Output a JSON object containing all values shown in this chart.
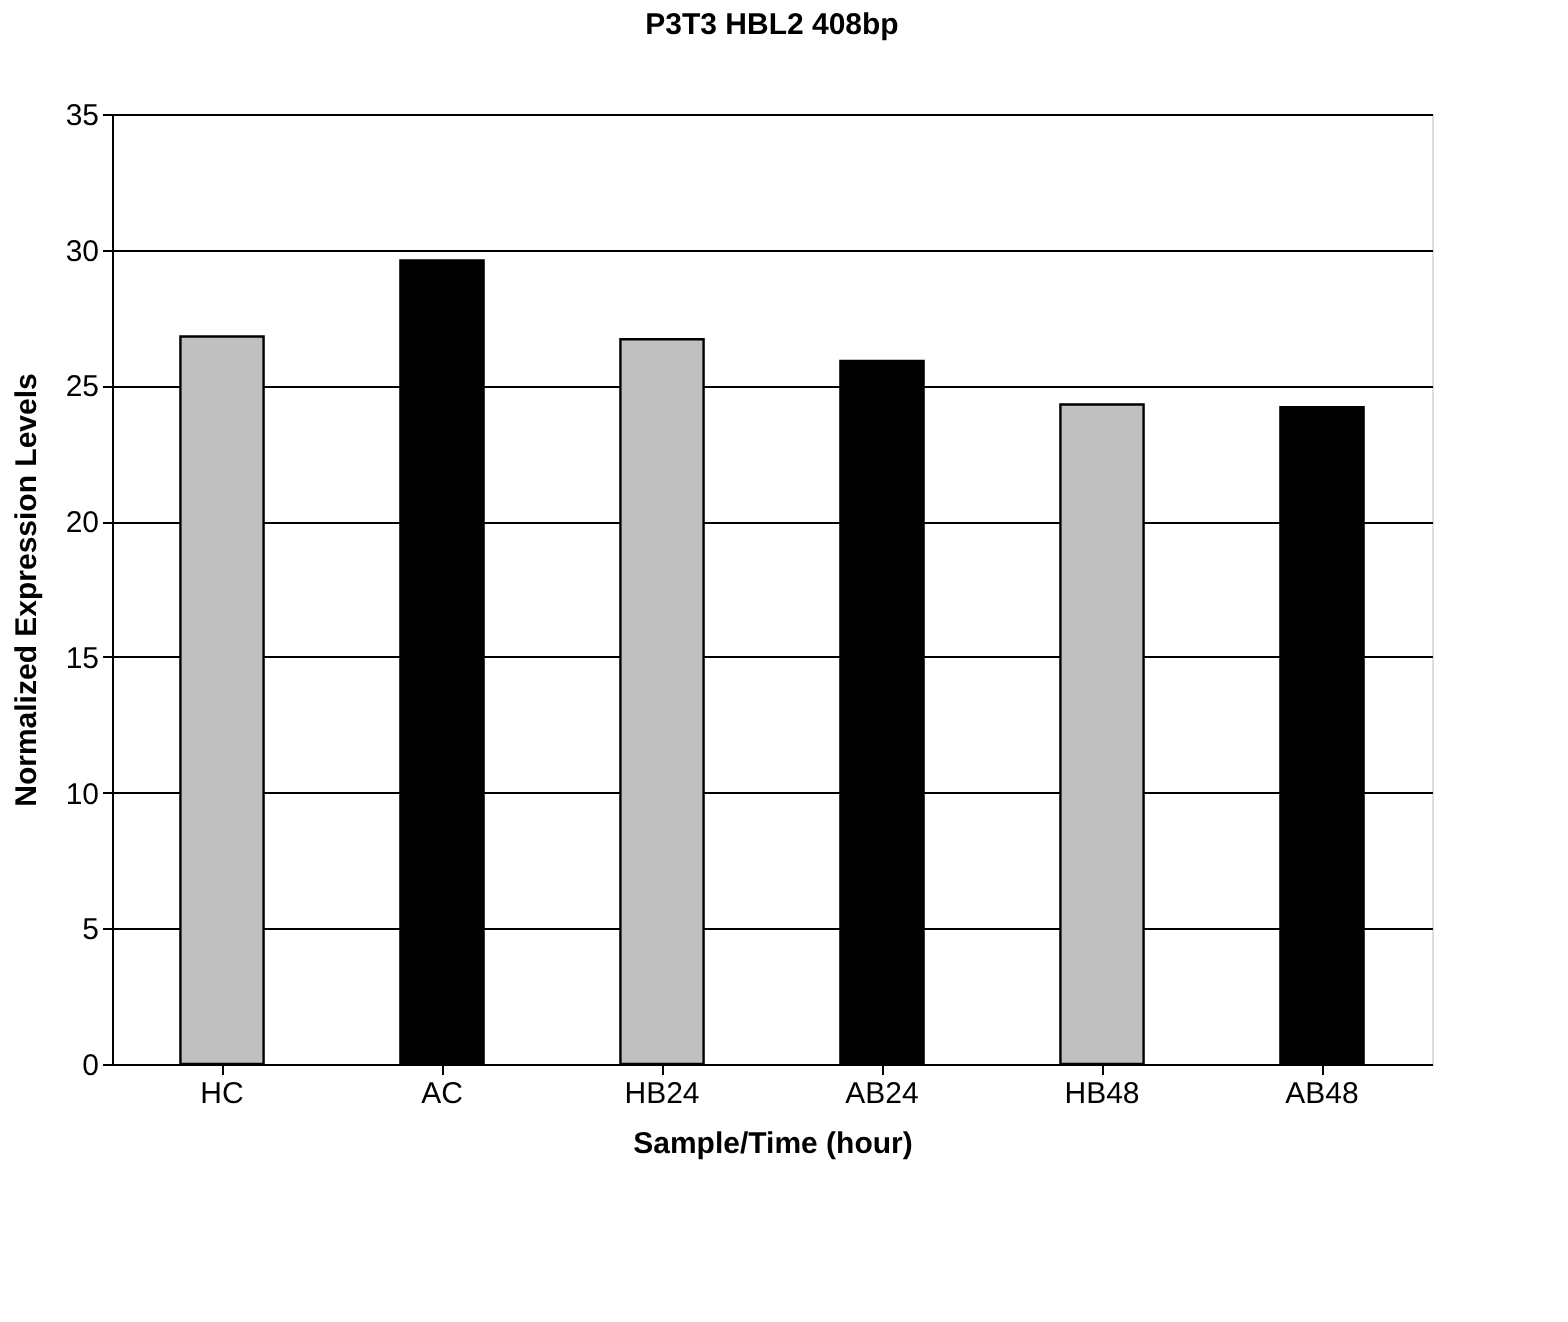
{
  "chart_data": {
    "type": "bar",
    "title": "P3T3 HBL2 408bp",
    "xlabel": "Sample/Time (hour)",
    "ylabel": "Normalized Expression Levels",
    "categories": [
      "HC",
      "AC",
      "HB24",
      "AB24",
      "HB48",
      "AB48"
    ],
    "values": [
      26.8,
      29.6,
      26.7,
      25.9,
      24.3,
      24.2
    ],
    "colors": [
      "#c0c0c0",
      "#000000",
      "#c0c0c0",
      "#000000",
      "#c0c0c0",
      "#000000"
    ],
    "ylim": [
      0,
      35
    ],
    "yticks": [
      0,
      5,
      10,
      15,
      20,
      25,
      30,
      35
    ],
    "grid": "y"
  }
}
